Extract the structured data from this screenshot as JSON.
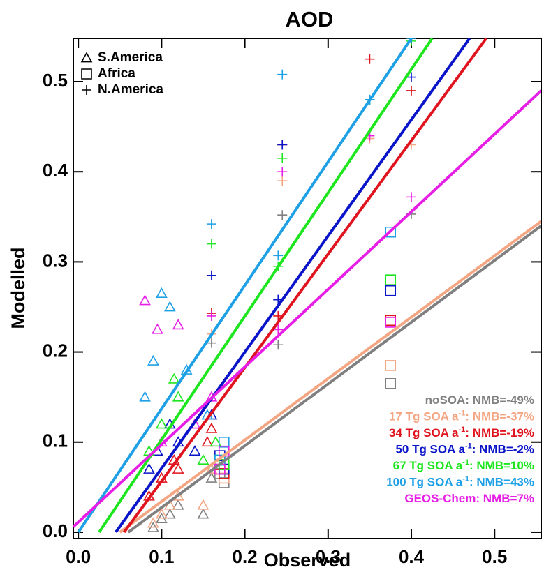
{
  "chart_data": {
    "type": "scatter",
    "title": "AOD",
    "x_label": "Observed",
    "y_label": "Modelled",
    "xlim": [
      -0.006,
      0.556
    ],
    "ylim": [
      -0.007,
      0.548
    ],
    "xticks": [
      {
        "value": 0,
        "label": "0.0"
      },
      0.1,
      0.2,
      0.3,
      0.4,
      0.5
    ],
    "yticks": [
      {
        "value": 0,
        "label": "0.0"
      },
      0.1,
      0.2,
      0.3,
      0.4,
      0.5
    ],
    "marker_legend": [
      {
        "label": "S.America",
        "marker": "triangle"
      },
      {
        "label": "Africa",
        "marker": "square"
      },
      {
        "label": "N.America",
        "marker": "plus"
      }
    ],
    "legend_position": "lower right",
    "series": [
      {
        "name": "noSOA",
        "nmb": ": NMB=-49%",
        "color": "#808080",
        "fit": {
          "x": [
            0.06,
            0.556
          ],
          "y": [
            0,
            0.34
          ]
        },
        "groups": [
          {
            "x": [
              0.09,
              0.1,
              0.11,
              0.12,
              0.15,
              0.16
            ],
            "y": [
              0.005,
              0.015,
              0.02,
              0.03,
              0.02,
              0.06
            ]
          },
          {
            "x": [
              0.175,
              0.17,
              0.375
            ],
            "y": [
              0.055,
              0.065,
              0.165
            ]
          },
          {
            "x": [
              0.16,
              0.245,
              0.35,
              0.4,
              0.24
            ],
            "y": [
              0.21,
              0.352,
              0.44,
              0.353,
              0.208
            ]
          }
        ]
      },
      {
        "name": "17 Tg SOA a",
        "sup": "-1",
        "nmb": ": NMB=-37%",
        "color": "#f4a582",
        "fit": {
          "x": [
            0.05,
            0.556
          ],
          "y": [
            0,
            0.345
          ]
        },
        "groups": [
          {
            "x": [
              0.09,
              0.1,
              0.11,
              0.12,
              0.15,
              0.16
            ],
            "y": [
              0.01,
              0.02,
              0.03,
              0.04,
              0.03,
              0.07
            ]
          },
          {
            "x": [
              0.175,
              0.17,
              0.375
            ],
            "y": [
              0.06,
              0.07,
              0.185
            ]
          },
          {
            "x": [
              0.16,
              0.245,
              0.35,
              0.4,
              0.24
            ],
            "y": [
              0.22,
              0.39,
              0.437,
              0.43,
              0.225
            ]
          }
        ]
      },
      {
        "name": "34 Tg SOA a",
        "sup": "-1",
        "nmb": ": NMB=-19%",
        "color": "#e0141e",
        "fit": {
          "x": [
            0.055,
            0.49
          ],
          "y": [
            0,
            0.548
          ]
        },
        "groups": [
          {
            "x": [
              0.085,
              0.1,
              0.115,
              0.12,
              0.155,
              0.16
            ],
            "y": [
              0.04,
              0.06,
              0.08,
              0.07,
              0.1,
              0.115
            ]
          },
          {
            "x": [
              0.175,
              0.17,
              0.375
            ],
            "y": [
              0.065,
              0.075,
              0.235
            ]
          },
          {
            "x": [
              0.16,
              0.245,
              0.35,
              0.4,
              0.24
            ],
            "y": [
              0.243,
              0.43,
              0.525,
              0.49,
              0.24
            ]
          }
        ]
      },
      {
        "name": "50 Tg SOA a",
        "sup": "-1",
        "nmb": ": NMB=-2%",
        "color": "#0a14c8",
        "fit": {
          "x": [
            0.045,
            0.47
          ],
          "y": [
            0,
            0.548
          ]
        },
        "groups": [
          {
            "x": [
              0.085,
              0.095,
              0.11,
              0.12,
              0.14,
              0.16
            ],
            "y": [
              0.07,
              0.09,
              0.12,
              0.1,
              0.09,
              0.13
            ]
          },
          {
            "x": [
              0.175,
              0.17,
              0.375
            ],
            "y": [
              0.07,
              0.085,
              0.268
            ]
          },
          {
            "x": [
              0.16,
              0.245,
              0.35,
              0.4,
              0.24
            ],
            "y": [
              0.285,
              0.43,
              0.48,
              0.505,
              0.258
            ]
          }
        ]
      },
      {
        "name": "67 Tg SOA a",
        "sup": "-1",
        "nmb": ": NMB=10%",
        "color": "#1ee61e",
        "fit": {
          "x": [
            0.025,
            0.425
          ],
          "y": [
            0,
            0.548
          ]
        },
        "groups": [
          {
            "x": [
              0.085,
              0.1,
              0.115,
              0.12,
              0.15,
              0.165
            ],
            "y": [
              0.09,
              0.12,
              0.17,
              0.15,
              0.08,
              0.1
            ]
          },
          {
            "x": [
              0.175,
              0.17,
              0.375
            ],
            "y": [
              0.075,
              0.08,
              0.28
            ]
          },
          {
            "x": [
              0.16,
              0.245,
              0.35,
              0.4,
              0.24
            ],
            "y": [
              0.32,
              0.415,
              0.48,
              0.545,
              0.295
            ]
          }
        ]
      },
      {
        "name": "100 Tg SOA a",
        "sup": "-1",
        "nmb": ": NMB=43%",
        "color": "#1ea0e6",
        "fit": {
          "x": [
            0,
            0.4
          ],
          "y": [
            0,
            0.548
          ]
        },
        "groups": [
          {
            "x": [
              0.08,
              0.09,
              0.1,
              0.11,
              0.13,
              0.155
            ],
            "y": [
              0.15,
              0.19,
              0.265,
              0.25,
              0.18,
              0.13
            ]
          },
          {
            "x": [
              0.175,
              0.17,
              0.375
            ],
            "y": [
              0.1,
              0.08,
              0.333
            ]
          },
          {
            "x": [
              0.16,
              0.245,
              0.35,
              0.4,
              0.24
            ],
            "y": [
              0.342,
              0.508,
              0.48,
              0.548,
              0.307
            ]
          }
        ]
      },
      {
        "name": "GEOS-Chem",
        "nmb": ": NMB=7%",
        "color": "#e61ee6",
        "fit": {
          "x": [
            -0.006,
            0.556
          ],
          "y": [
            0.006,
            0.49
          ]
        },
        "groups": [
          {
            "x": [
              0.08,
              0.095,
              0.1,
              0.12,
              0.14,
              0.16
            ],
            "y": [
              0.257,
              0.225,
              0.1,
              0.23,
              0.12,
              0.15
            ]
          },
          {
            "x": [
              0.175,
              0.17,
              0.375
            ],
            "y": [
              0.09,
              0.07,
              0.233
            ]
          },
          {
            "x": [
              0.16,
              0.245,
              0.35,
              0.4,
              0.24
            ],
            "y": [
              0.24,
              0.4,
              0.44,
              0.372,
              0.225
            ]
          }
        ]
      }
    ]
  }
}
